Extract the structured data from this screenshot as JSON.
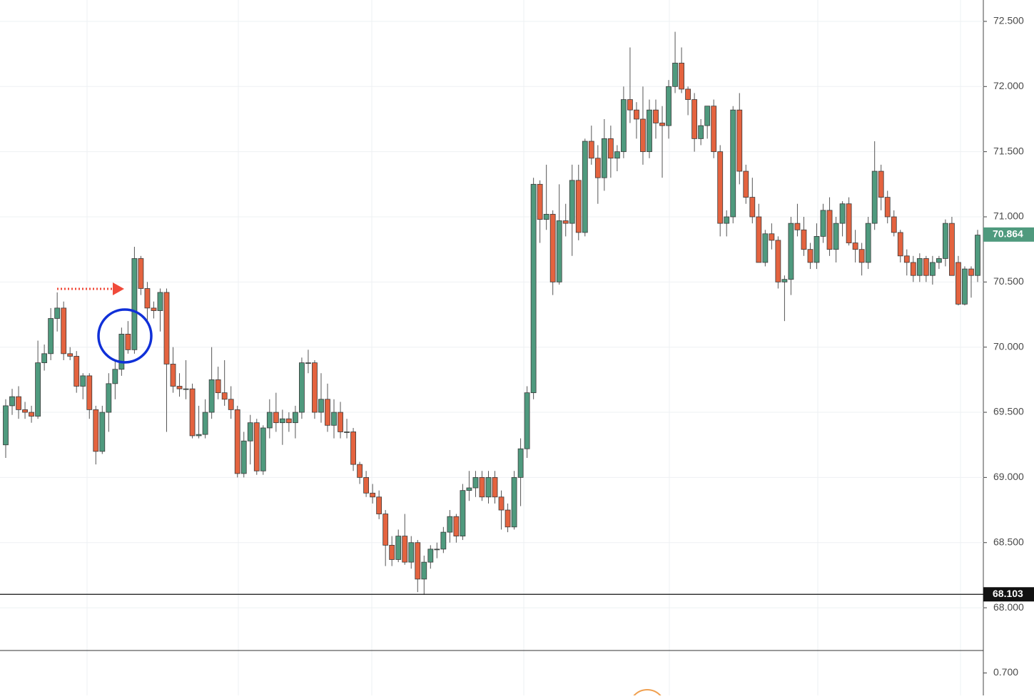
{
  "chart_data": {
    "type": "candlestick",
    "ohlc": [
      [
        69.25,
        69.6,
        69.15,
        69.55
      ],
      [
        69.55,
        69.68,
        69.48,
        69.62
      ],
      [
        69.62,
        69.7,
        69.45,
        69.52
      ],
      [
        69.52,
        69.58,
        69.45,
        69.5
      ],
      [
        69.5,
        69.55,
        69.42,
        69.47
      ],
      [
        69.47,
        70.05,
        69.45,
        69.88
      ],
      [
        69.88,
        70.02,
        69.82,
        69.95
      ],
      [
        69.95,
        70.3,
        69.9,
        70.22
      ],
      [
        70.22,
        70.42,
        70.12,
        70.3
      ],
      [
        70.3,
        70.35,
        69.9,
        69.95
      ],
      [
        69.95,
        70.0,
        69.9,
        69.93
      ],
      [
        69.93,
        69.97,
        69.65,
        69.7
      ],
      [
        69.7,
        69.8,
        69.6,
        69.78
      ],
      [
        69.78,
        69.8,
        69.45,
        69.52
      ],
      [
        69.52,
        69.55,
        69.1,
        69.2
      ],
      [
        69.2,
        69.55,
        69.18,
        69.5
      ],
      [
        69.5,
        69.8,
        69.35,
        69.72
      ],
      [
        69.72,
        69.9,
        69.6,
        69.83
      ],
      [
        69.83,
        70.15,
        69.78,
        70.1
      ],
      [
        70.1,
        70.2,
        69.95,
        69.98
      ],
      [
        69.98,
        70.77,
        69.95,
        70.68
      ],
      [
        70.68,
        70.7,
        70.4,
        70.45
      ],
      [
        70.45,
        70.5,
        70.2,
        70.3
      ],
      [
        70.3,
        70.35,
        70.22,
        70.28
      ],
      [
        70.28,
        70.45,
        70.12,
        70.42
      ],
      [
        70.42,
        70.45,
        69.35,
        69.87
      ],
      [
        69.87,
        70.0,
        69.65,
        69.7
      ],
      [
        69.7,
        69.8,
        69.62,
        69.68
      ],
      [
        69.68,
        69.9,
        69.6,
        69.68
      ],
      [
        69.68,
        69.72,
        69.3,
        69.32
      ],
      [
        69.32,
        69.55,
        69.3,
        69.33
      ],
      [
        69.33,
        69.6,
        69.3,
        69.5
      ],
      [
        69.5,
        70.0,
        69.45,
        69.75
      ],
      [
        69.75,
        69.85,
        69.6,
        69.65
      ],
      [
        69.65,
        69.9,
        69.55,
        69.6
      ],
      [
        69.6,
        69.7,
        69.45,
        69.52
      ],
      [
        69.52,
        69.55,
        69.0,
        69.03
      ],
      [
        69.03,
        69.35,
        69.0,
        69.28
      ],
      [
        69.28,
        69.48,
        69.1,
        69.42
      ],
      [
        69.42,
        69.45,
        69.02,
        69.05
      ],
      [
        69.05,
        69.4,
        69.02,
        69.38
      ],
      [
        69.38,
        69.6,
        69.3,
        69.5
      ],
      [
        69.5,
        69.65,
        69.35,
        69.42
      ],
      [
        69.42,
        69.52,
        69.25,
        69.45
      ],
      [
        69.45,
        69.5,
        69.35,
        69.42
      ],
      [
        69.42,
        69.55,
        69.3,
        69.5
      ],
      [
        69.5,
        69.92,
        69.45,
        69.88
      ],
      [
        69.88,
        69.98,
        69.8,
        69.88
      ],
      [
        69.88,
        69.9,
        69.45,
        69.5
      ],
      [
        69.5,
        69.8,
        69.42,
        69.6
      ],
      [
        69.6,
        69.72,
        69.35,
        69.4
      ],
      [
        69.4,
        69.6,
        69.3,
        69.5
      ],
      [
        69.5,
        69.58,
        69.3,
        69.35
      ],
      [
        69.35,
        69.45,
        69.3,
        69.35
      ],
      [
        69.35,
        69.38,
        69.05,
        69.1
      ],
      [
        69.1,
        69.12,
        68.95,
        69.0
      ],
      [
        69.0,
        69.05,
        68.85,
        68.88
      ],
      [
        68.88,
        68.95,
        68.8,
        68.85
      ],
      [
        68.85,
        68.9,
        68.68,
        68.72
      ],
      [
        68.72,
        68.75,
        68.32,
        68.48
      ],
      [
        68.48,
        68.55,
        68.32,
        68.37
      ],
      [
        68.37,
        68.6,
        68.35,
        68.55
      ],
      [
        68.55,
        68.72,
        68.33,
        68.35
      ],
      [
        68.35,
        68.55,
        68.3,
        68.5
      ],
      [
        68.5,
        68.52,
        68.12,
        68.22
      ],
      [
        68.22,
        68.4,
        68.1,
        68.35
      ],
      [
        68.35,
        68.48,
        68.3,
        68.45
      ],
      [
        68.45,
        68.5,
        68.38,
        68.45
      ],
      [
        68.45,
        68.62,
        68.42,
        68.58
      ],
      [
        68.58,
        68.75,
        68.5,
        68.7
      ],
      [
        68.7,
        68.72,
        68.5,
        68.55
      ],
      [
        68.55,
        68.95,
        68.52,
        68.9
      ],
      [
        68.9,
        69.05,
        68.82,
        68.92
      ],
      [
        68.92,
        69.05,
        68.85,
        69.0
      ],
      [
        69.0,
        69.05,
        68.82,
        68.85
      ],
      [
        68.85,
        69.05,
        68.8,
        69.0
      ],
      [
        69.0,
        69.05,
        68.8,
        68.85
      ],
      [
        68.85,
        68.9,
        68.6,
        68.75
      ],
      [
        68.75,
        68.8,
        68.58,
        68.62
      ],
      [
        68.62,
        69.05,
        68.6,
        69.0
      ],
      [
        69.0,
        69.3,
        68.78,
        69.22
      ],
      [
        69.22,
        69.7,
        69.15,
        69.65
      ],
      [
        69.65,
        71.3,
        69.6,
        71.25
      ],
      [
        71.25,
        71.28,
        70.8,
        70.98
      ],
      [
        70.98,
        71.4,
        70.9,
        71.02
      ],
      [
        71.02,
        71.05,
        70.4,
        70.5
      ],
      [
        70.5,
        71.25,
        70.48,
        70.97
      ],
      [
        70.97,
        71.1,
        70.85,
        70.95
      ],
      [
        70.95,
        71.4,
        70.7,
        71.28
      ],
      [
        71.28,
        71.4,
        70.82,
        70.88
      ],
      [
        70.88,
        71.6,
        70.85,
        71.58
      ],
      [
        71.58,
        71.7,
        71.4,
        71.45
      ],
      [
        71.45,
        71.55,
        71.1,
        71.3
      ],
      [
        71.3,
        71.75,
        71.2,
        71.6
      ],
      [
        71.6,
        71.7,
        71.3,
        71.45
      ],
      [
        71.45,
        71.55,
        71.35,
        71.5
      ],
      [
        71.5,
        72.0,
        71.45,
        71.9
      ],
      [
        71.9,
        72.3,
        71.72,
        71.82
      ],
      [
        71.82,
        71.88,
        71.6,
        71.75
      ],
      [
        71.75,
        72.0,
        71.4,
        71.5
      ],
      [
        71.5,
        71.9,
        71.45,
        71.82
      ],
      [
        71.82,
        71.9,
        71.6,
        71.72
      ],
      [
        71.72,
        71.85,
        71.3,
        71.7
      ],
      [
        71.7,
        72.05,
        71.6,
        72.0
      ],
      [
        72.0,
        72.42,
        71.95,
        72.18
      ],
      [
        72.18,
        72.3,
        71.95,
        71.98
      ],
      [
        71.98,
        72.0,
        71.78,
        71.9
      ],
      [
        71.9,
        71.95,
        71.5,
        71.6
      ],
      [
        71.6,
        71.75,
        71.55,
        71.7
      ],
      [
        71.7,
        71.85,
        71.6,
        71.85
      ],
      [
        71.85,
        71.9,
        71.45,
        71.5
      ],
      [
        71.5,
        71.55,
        70.85,
        70.95
      ],
      [
        70.95,
        71.05,
        70.85,
        71.0
      ],
      [
        71.0,
        71.85,
        70.95,
        71.82
      ],
      [
        71.82,
        71.95,
        71.25,
        71.35
      ],
      [
        71.35,
        71.4,
        71.1,
        71.15
      ],
      [
        71.15,
        71.3,
        70.95,
        71.0
      ],
      [
        71.0,
        71.1,
        70.65,
        70.65
      ],
      [
        70.65,
        70.9,
        70.62,
        70.87
      ],
      [
        70.87,
        70.95,
        70.75,
        70.82
      ],
      [
        70.82,
        70.85,
        70.45,
        70.5
      ],
      [
        70.5,
        70.55,
        70.2,
        70.52
      ],
      [
        70.52,
        71.0,
        70.4,
        70.95
      ],
      [
        70.95,
        71.1,
        70.85,
        70.9
      ],
      [
        70.9,
        71.0,
        70.7,
        70.75
      ],
      [
        70.75,
        70.8,
        70.6,
        70.65
      ],
      [
        70.65,
        70.95,
        70.6,
        70.85
      ],
      [
        70.85,
        71.1,
        70.8,
        71.05
      ],
      [
        71.05,
        71.15,
        70.7,
        70.75
      ],
      [
        70.75,
        71.0,
        70.65,
        70.95
      ],
      [
        70.95,
        71.12,
        70.85,
        71.1
      ],
      [
        71.1,
        71.15,
        70.78,
        70.8
      ],
      [
        70.8,
        70.9,
        70.65,
        70.75
      ],
      [
        70.75,
        70.8,
        70.55,
        70.65
      ],
      [
        70.65,
        71.0,
        70.6,
        70.95
      ],
      [
        70.95,
        71.58,
        70.9,
        71.35
      ],
      [
        71.35,
        71.4,
        71.05,
        71.15
      ],
      [
        71.15,
        71.2,
        70.95,
        71.0
      ],
      [
        71.0,
        71.05,
        70.85,
        70.88
      ],
      [
        70.88,
        70.9,
        70.65,
        70.7
      ],
      [
        70.7,
        70.75,
        70.55,
        70.65
      ],
      [
        70.65,
        70.7,
        70.5,
        70.55
      ],
      [
        70.55,
        70.72,
        70.5,
        70.68
      ],
      [
        70.68,
        70.7,
        70.5,
        70.55
      ],
      [
        70.55,
        70.7,
        70.48,
        70.65
      ],
      [
        70.65,
        70.7,
        70.6,
        70.68
      ],
      [
        70.68,
        70.98,
        70.62,
        70.95
      ],
      [
        70.95,
        71.0,
        70.55,
        70.55
      ],
      [
        70.65,
        70.7,
        70.32,
        70.33
      ],
      [
        70.33,
        70.62,
        70.32,
        70.6
      ],
      [
        70.6,
        70.62,
        70.38,
        70.55
      ],
      [
        70.55,
        70.9,
        70.5,
        70.86
      ]
    ],
    "up_color": "#4f9a7e",
    "down_color": "#e4633f",
    "ylim": [
      67.672,
      72.664
    ],
    "yticks": [
      {
        "value": 68,
        "label": "68.000"
      },
      {
        "value": 68.5,
        "label": "68.500"
      },
      {
        "value": 69,
        "label": "69.000"
      },
      {
        "value": 69.5,
        "label": "69.500"
      },
      {
        "value": 70,
        "label": "70.000"
      },
      {
        "value": 70.5,
        "label": "70.500"
      },
      {
        "value": 71,
        "label": "71.000"
      },
      {
        "value": 71.5,
        "label": "71.500"
      },
      {
        "value": 72,
        "label": "72.000"
      },
      {
        "value": 72.5,
        "label": "72.500"
      }
    ],
    "grid": true,
    "last_price": 70.864,
    "horizontal_line": 68.103,
    "lower_pane": {
      "ylim": [
        0.6,
        0.8
      ],
      "yticks": [
        {
          "value": 0.7,
          "label": "0.700"
        }
      ]
    }
  }
}
